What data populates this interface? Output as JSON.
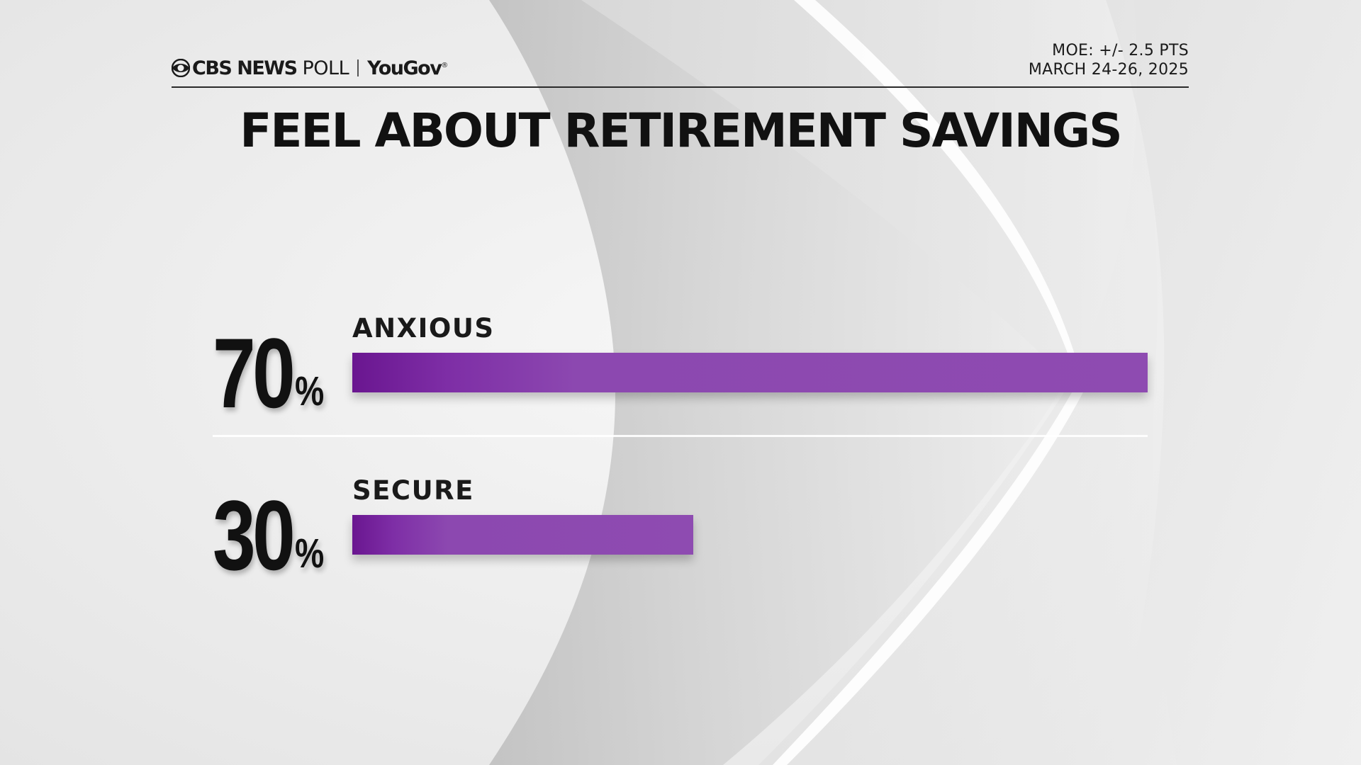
{
  "header": {
    "brand": "CBS NEWS",
    "poll": "POLL",
    "partner": "YouGov",
    "partner_mark": "®",
    "moe": "MOE: +/- 2.5 PTS",
    "dates": "MARCH 24-26, 2025"
  },
  "colors": {
    "bar": "#8e4bb1",
    "bar_dark": "#6a1690",
    "text": "#111111",
    "background": "#efefef"
  },
  "chart_data": {
    "type": "bar",
    "orientation": "horizontal",
    "title": "FEEL ABOUT RETIREMENT SAVINGS",
    "categories": [
      "ANXIOUS",
      "SECURE"
    ],
    "values": [
      70,
      30
    ],
    "value_suffix": "%",
    "xlim": [
      0,
      70
    ],
    "grid": false,
    "legend": "none"
  }
}
